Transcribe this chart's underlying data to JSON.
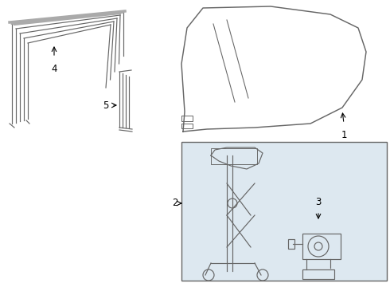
{
  "bg_color": "#ffffff",
  "line_color": "#666666",
  "label_color": "#000000",
  "box_bg": "#dde8f0",
  "lw": 0.85
}
